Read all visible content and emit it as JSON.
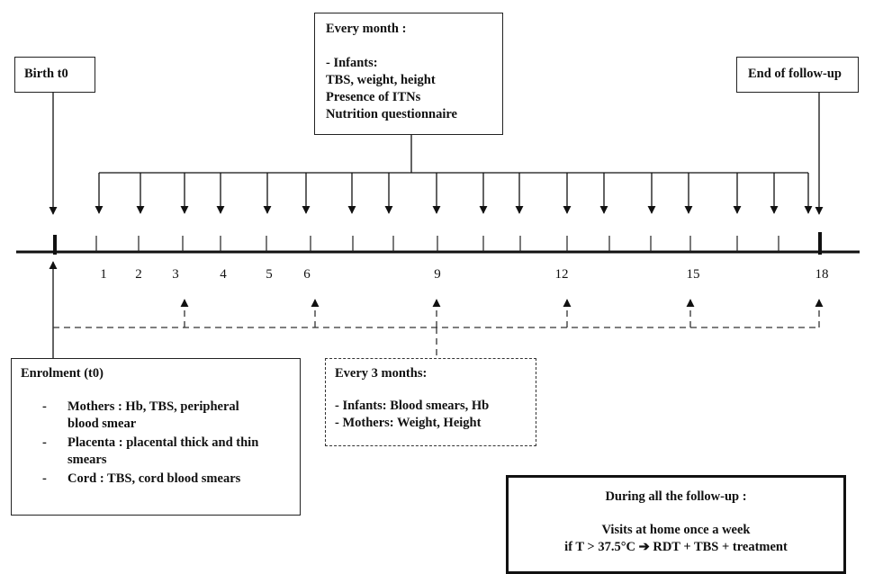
{
  "birth_box": {
    "label": "Birth t0"
  },
  "end_box": {
    "label": "End of follow-up"
  },
  "monthly_box": {
    "title": "Every month :",
    "group": "- Infants:",
    "items": [
      "TBS,  weight, height",
      "Presence of ITNs",
      "Nutrition questionnaire"
    ]
  },
  "quarterly_box": {
    "title": "Every 3 months:",
    "items": [
      "- Infants: Blood smears, Hb",
      "- Mothers: Weight, Height"
    ]
  },
  "enrolment_box": {
    "title": "Enrolment (t0)",
    "bullet": "-",
    "items": [
      "Mothers : Hb, TBS, peripheral blood smear",
      "Placenta : placental thick and thin smears",
      "Cord : TBS, cord blood smears"
    ]
  },
  "followup_box": {
    "title": "During all the follow-up :",
    "line1": "Visits at home once a week",
    "line2": "if T > 37.5°C ➔ RDT + TBS + treatment"
  },
  "timeline": {
    "labels": [
      "1",
      "2",
      "3",
      "4",
      "5",
      "6",
      "9",
      "12",
      "15",
      "18"
    ]
  }
}
